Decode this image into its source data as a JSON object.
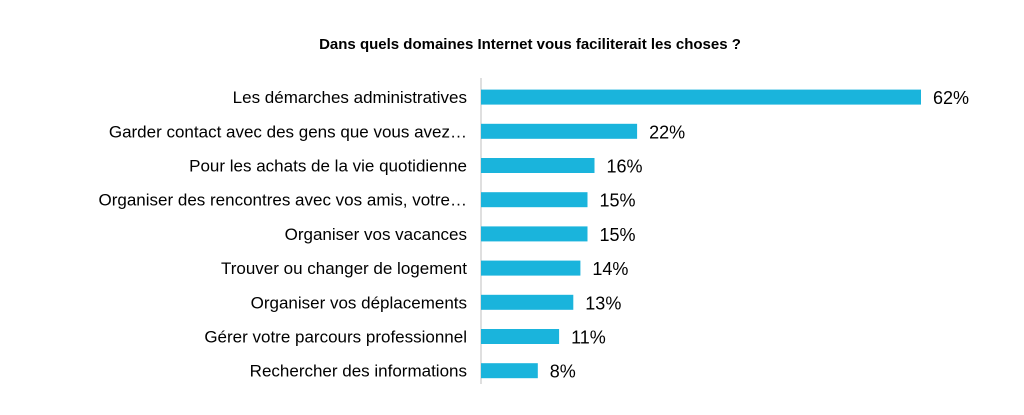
{
  "chart_data": {
    "type": "bar",
    "orientation": "horizontal",
    "title": "Dans quels domaines Internet vous faciliterait les choses ?",
    "categories": [
      "Les démarches administratives",
      "Garder contact avec des gens que vous avez…",
      "Pour les achats de la vie quotidienne",
      "Organiser des rencontres avec vos amis, votre…",
      "Organiser vos vacances",
      "Trouver ou changer de logement",
      "Organiser vos déplacements",
      "Gérer votre parcours professionnel",
      "Rechercher des informations"
    ],
    "values": [
      62,
      22,
      16,
      15,
      15,
      14,
      13,
      11,
      8
    ],
    "value_labels": [
      "62%",
      "22%",
      "16%",
      "15%",
      "15%",
      "14%",
      "13%",
      "11%",
      "8%"
    ],
    "unit": "%",
    "xlim": [
      0,
      62
    ],
    "bar_color": "#1ab4dc",
    "grid": false,
    "legend": "none"
  }
}
